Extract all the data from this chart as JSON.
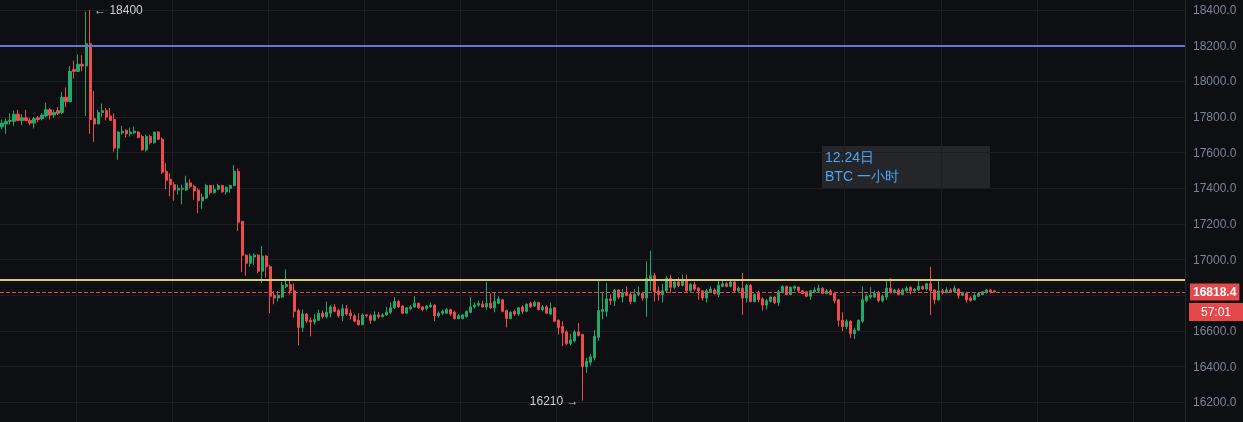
{
  "chart_data": {
    "type": "candlestick",
    "title": "12.24日",
    "subtitle": "BTC 一小时",
    "categories": [
      null,
      null,
      null,
      null,
      null,
      null,
      null,
      null,
      null,
      null,
      null,
      null,
      null,
      null,
      null,
      null,
      null,
      null,
      null,
      null,
      null,
      null,
      null,
      null,
      null,
      null,
      null,
      null,
      null,
      null,
      null,
      null,
      null,
      null,
      null,
      null,
      null,
      null,
      null,
      null,
      null,
      null,
      null,
      null,
      null,
      null,
      null,
      null,
      null,
      null,
      null,
      null,
      null,
      null,
      null,
      null,
      null,
      null,
      null,
      null,
      null,
      null,
      null,
      null,
      null,
      null,
      null,
      null,
      null,
      null,
      null,
      null,
      null,
      null,
      null,
      null,
      null,
      null,
      null,
      null,
      null,
      null,
      null,
      null,
      null,
      null,
      null,
      null,
      null,
      null,
      null,
      null,
      null,
      null,
      null,
      null,
      null,
      null,
      null,
      null,
      null,
      null,
      null,
      null,
      null,
      null,
      null,
      null,
      null,
      null,
      null,
      null,
      null,
      null,
      null,
      null,
      null,
      null,
      null,
      null,
      null,
      null,
      null,
      null,
      null,
      null,
      null,
      null,
      null,
      null,
      null,
      null,
      null,
      null,
      null,
      null,
      null,
      null,
      null,
      null,
      null,
      null,
      null,
      null,
      null,
      null,
      null,
      null,
      null,
      null,
      null,
      null,
      null,
      null,
      null,
      null,
      null,
      null,
      null,
      null,
      null,
      null,
      null,
      null,
      null,
      null,
      null,
      null,
      null,
      null,
      null,
      null,
      null,
      null,
      null,
      null,
      null,
      null,
      null,
      null,
      null,
      null,
      null,
      null,
      null,
      null,
      null,
      null,
      null,
      null,
      null,
      null,
      null,
      null,
      null,
      null,
      null,
      null,
      null,
      null,
      null,
      null,
      null,
      null,
      null,
      null,
      null,
      null,
      null,
      null,
      null,
      null,
      null,
      null,
      null,
      null,
      null,
      null,
      null,
      null,
      null,
      null,
      null,
      null,
      null,
      null,
      null,
      null,
      null,
      null,
      null,
      null,
      null,
      null,
      null,
      null,
      null,
      null,
      null,
      null,
      null,
      null,
      null,
      null,
      null,
      null,
      null,
      null,
      null,
      null,
      null,
      null,
      null,
      null,
      null,
      null,
      null,
      null,
      null,
      null,
      null,
      null,
      null,
      null,
      null,
      null,
      null,
      null,
      null,
      null,
      null,
      null,
      null,
      null,
      null,
      null,
      null,
      null,
      null,
      null,
      null,
      null,
      null,
      null,
      null,
      null,
      null,
      null,
      null,
      null,
      null,
      null,
      null,
      null,
      null,
      null
    ],
    "ohlc": [
      [
        17745,
        17785,
        17730,
        17765
      ],
      [
        17760,
        17790,
        17705,
        17775
      ],
      [
        17775,
        17820,
        17755,
        17780
      ],
      [
        17775,
        17835,
        17750,
        17815
      ],
      [
        17815,
        17840,
        17775,
        17780
      ],
      [
        17780,
        17815,
        17755,
        17795
      ],
      [
        17795,
        17840,
        17775,
        17780
      ],
      [
        17780,
        17795,
        17755,
        17765
      ],
      [
        17765,
        17800,
        17735,
        17790
      ],
      [
        17795,
        17805,
        17770,
        17785
      ],
      [
        17790,
        17820,
        17780,
        17810
      ],
      [
        17805,
        17880,
        17800,
        17840
      ],
      [
        17840,
        17850,
        17785,
        17810
      ],
      [
        17810,
        17840,
        17795,
        17825
      ],
      [
        17835,
        17855,
        17810,
        17820
      ],
      [
        17825,
        17940,
        17815,
        17910
      ],
      [
        17910,
        17965,
        17855,
        17885
      ],
      [
        17885,
        18085,
        17885,
        18055
      ],
      [
        18065,
        18115,
        18015,
        18055
      ],
      [
        18055,
        18150,
        18055,
        18095
      ],
      [
        18095,
        18145,
        18055,
        18085
      ],
      [
        18085,
        18390,
        17805,
        18210
      ],
      [
        18210,
        18400,
        17705,
        17785
      ],
      [
        17790,
        17945,
        17660,
        17760
      ],
      [
        17760,
        17840,
        17760,
        17825
      ],
      [
        17825,
        17875,
        17800,
        17835
      ],
      [
        17835,
        17850,
        17780,
        17800
      ],
      [
        17805,
        17850,
        17780,
        17780
      ],
      [
        17785,
        17820,
        17605,
        17625
      ],
      [
        17625,
        17720,
        17560,
        17715
      ],
      [
        17710,
        17750,
        17700,
        17720
      ],
      [
        17725,
        17730,
        17685,
        17705
      ],
      [
        17705,
        17740,
        17690,
        17715
      ],
      [
        17710,
        17745,
        17705,
        17720
      ],
      [
        17715,
        17720,
        17680,
        17685
      ],
      [
        17690,
        17700,
        17610,
        17615
      ],
      [
        17615,
        17700,
        17605,
        17690
      ],
      [
        17690,
        17700,
        17645,
        17655
      ],
      [
        17655,
        17715,
        17650,
        17715
      ],
      [
        17715,
        17720,
        17670,
        17675
      ],
      [
        17675,
        17685,
        17480,
        17490
      ],
      [
        17495,
        17540,
        17395,
        17445
      ],
      [
        17450,
        17485,
        17355,
        17420
      ],
      [
        17420,
        17435,
        17330,
        17390
      ],
      [
        17390,
        17420,
        17365,
        17400
      ],
      [
        17395,
        17420,
        17310,
        17400
      ],
      [
        17390,
        17470,
        17385,
        17430
      ],
      [
        17430,
        17450,
        17400,
        17410
      ],
      [
        17410,
        17420,
        17335,
        17385
      ],
      [
        17390,
        17400,
        17260,
        17330
      ],
      [
        17330,
        17370,
        17285,
        17350
      ],
      [
        17345,
        17425,
        17340,
        17415
      ],
      [
        17415,
        17420,
        17365,
        17375
      ],
      [
        17375,
        17420,
        17370,
        17395
      ],
      [
        17395,
        17425,
        17390,
        17415
      ],
      [
        17415,
        17420,
        17375,
        17380
      ],
      [
        17380,
        17410,
        17365,
        17405
      ],
      [
        17400,
        17420,
        17375,
        17415
      ],
      [
        17415,
        17530,
        17410,
        17495
      ],
      [
        17495,
        17510,
        17160,
        17210
      ],
      [
        17215,
        17215,
        16930,
        17025
      ],
      [
        17025,
        17030,
        16910,
        16980
      ],
      [
        16980,
        17035,
        16960,
        17020
      ],
      [
        17015,
        17035,
        16970,
        17025
      ],
      [
        17025,
        17030,
        16925,
        16935
      ],
      [
        16935,
        17075,
        16870,
        17020
      ],
      [
        17020,
        17025,
        16900,
        16960
      ],
      [
        16960,
        16970,
        16700,
        16795
      ],
      [
        16800,
        16825,
        16750,
        16785
      ],
      [
        16785,
        16825,
        16765,
        16800
      ],
      [
        16790,
        16875,
        16785,
        16855
      ],
      [
        16850,
        16945,
        16840,
        16860
      ],
      [
        16860,
        16885,
        16805,
        16825
      ],
      [
        16825,
        16865,
        16675,
        16710
      ],
      [
        16715,
        16725,
        16520,
        16620
      ],
      [
        16620,
        16720,
        16595,
        16695
      ],
      [
        16695,
        16700,
        16645,
        16655
      ],
      [
        16660,
        16675,
        16570,
        16650
      ],
      [
        16650,
        16695,
        16635,
        16665
      ],
      [
        16660,
        16720,
        16660,
        16700
      ],
      [
        16700,
        16715,
        16670,
        16680
      ],
      [
        16680,
        16765,
        16670,
        16705
      ],
      [
        16700,
        16745,
        16675,
        16735
      ],
      [
        16735,
        16750,
        16705,
        16710
      ],
      [
        16715,
        16725,
        16675,
        16685
      ],
      [
        16685,
        16750,
        16655,
        16725
      ],
      [
        16725,
        16745,
        16685,
        16695
      ],
      [
        16700,
        16720,
        16665,
        16685
      ],
      [
        16685,
        16695,
        16650,
        16655
      ],
      [
        16660,
        16700,
        16630,
        16635
      ],
      [
        16635,
        16700,
        16635,
        16690
      ],
      [
        16690,
        16695,
        16675,
        16685
      ],
      [
        16685,
        16695,
        16640,
        16660
      ],
      [
        16660,
        16710,
        16655,
        16690
      ],
      [
        16690,
        16705,
        16670,
        16680
      ],
      [
        16680,
        16700,
        16675,
        16690
      ],
      [
        16690,
        16735,
        16685,
        16705
      ],
      [
        16705,
        16760,
        16695,
        16730
      ],
      [
        16730,
        16790,
        16725,
        16765
      ],
      [
        16765,
        16775,
        16730,
        16735
      ],
      [
        16740,
        16745,
        16695,
        16700
      ],
      [
        16700,
        16735,
        16700,
        16730
      ],
      [
        16725,
        16745,
        16715,
        16735
      ],
      [
        16735,
        16795,
        16730,
        16755
      ],
      [
        16755,
        16760,
        16725,
        16730
      ],
      [
        16735,
        16740,
        16710,
        16720
      ],
      [
        16725,
        16745,
        16715,
        16740
      ],
      [
        16735,
        16760,
        16730,
        16745
      ],
      [
        16745,
        16750,
        16655,
        16685
      ],
      [
        16685,
        16710,
        16675,
        16700
      ],
      [
        16700,
        16720,
        16690,
        16710
      ],
      [
        16700,
        16730,
        16695,
        16720
      ],
      [
        16720,
        16725,
        16685,
        16695
      ],
      [
        16705,
        16715,
        16665,
        16670
      ],
      [
        16670,
        16695,
        16665,
        16685
      ],
      [
        16670,
        16695,
        16665,
        16690
      ],
      [
        16680,
        16715,
        16675,
        16710
      ],
      [
        16705,
        16790,
        16700,
        16735
      ],
      [
        16735,
        16760,
        16725,
        16745
      ],
      [
        16745,
        16770,
        16735,
        16755
      ],
      [
        16750,
        16770,
        16730,
        16735
      ],
      [
        16735,
        16875,
        16720,
        16755
      ],
      [
        16755,
        16810,
        16725,
        16730
      ],
      [
        16730,
        16815,
        16705,
        16765
      ],
      [
        16755,
        16795,
        16750,
        16780
      ],
      [
        16775,
        16780,
        16705,
        16710
      ],
      [
        16715,
        16720,
        16620,
        16670
      ],
      [
        16670,
        16710,
        16665,
        16705
      ],
      [
        16710,
        16720,
        16685,
        16695
      ],
      [
        16695,
        16735,
        16685,
        16730
      ],
      [
        16735,
        16745,
        16695,
        16710
      ],
      [
        16710,
        16755,
        16705,
        16750
      ],
      [
        16755,
        16765,
        16730,
        16735
      ],
      [
        16740,
        16770,
        16735,
        16760
      ],
      [
        16760,
        16765,
        16715,
        16720
      ],
      [
        16720,
        16745,
        16710,
        16735
      ],
      [
        16735,
        16745,
        16695,
        16700
      ],
      [
        16695,
        16760,
        16690,
        16725
      ],
      [
        16730,
        16735,
        16650,
        16655
      ],
      [
        16660,
        16665,
        16580,
        16620
      ],
      [
        16625,
        16655,
        16515,
        16590
      ],
      [
        16595,
        16605,
        16520,
        16530
      ],
      [
        16530,
        16585,
        16520,
        16550
      ],
      [
        16545,
        16605,
        16535,
        16595
      ],
      [
        16595,
        16645,
        16570,
        16575
      ],
      [
        16580,
        16585,
        16210,
        16400
      ],
      [
        16400,
        16450,
        16365,
        16430
      ],
      [
        16425,
        16470,
        16405,
        16455
      ],
      [
        16450,
        16605,
        16435,
        16570
      ],
      [
        16565,
        16880,
        16545,
        16715
      ],
      [
        16710,
        16820,
        16665,
        16720
      ],
      [
        16710,
        16870,
        16680,
        16780
      ],
      [
        16780,
        16805,
        16745,
        16770
      ],
      [
        16770,
        16835,
        16740,
        16830
      ],
      [
        16830,
        16835,
        16780,
        16790
      ],
      [
        16790,
        16835,
        16760,
        16815
      ],
      [
        16815,
        16850,
        16795,
        16800
      ],
      [
        16805,
        16820,
        16750,
        16765
      ],
      [
        16765,
        16835,
        16760,
        16805
      ],
      [
        16805,
        16850,
        16795,
        16810
      ],
      [
        16810,
        16820,
        16770,
        16785
      ],
      [
        16785,
        16990,
        16680,
        16895
      ],
      [
        16890,
        17050,
        16825,
        16910
      ],
      [
        16910,
        16925,
        16765,
        16820
      ],
      [
        16825,
        16850,
        16770,
        16805
      ],
      [
        16805,
        16865,
        16760,
        16825
      ],
      [
        16825,
        16910,
        16815,
        16895
      ],
      [
        16895,
        16915,
        16815,
        16845
      ],
      [
        16845,
        16885,
        16835,
        16875
      ],
      [
        16875,
        16900,
        16845,
        16855
      ],
      [
        16855,
        16915,
        16850,
        16885
      ],
      [
        16885,
        16915,
        16820,
        16825
      ],
      [
        16825,
        16870,
        16820,
        16860
      ],
      [
        16860,
        16875,
        16825,
        16835
      ],
      [
        16840,
        16845,
        16775,
        16825
      ],
      [
        16825,
        16830,
        16770,
        16785
      ],
      [
        16785,
        16835,
        16760,
        16825
      ],
      [
        16820,
        16850,
        16815,
        16835
      ],
      [
        16830,
        16840,
        16805,
        16810
      ],
      [
        16805,
        16885,
        16790,
        16855
      ],
      [
        16850,
        16885,
        16845,
        16865
      ],
      [
        16865,
        16875,
        16845,
        16850
      ],
      [
        16850,
        16885,
        16845,
        16875
      ],
      [
        16875,
        16880,
        16815,
        16825
      ],
      [
        16825,
        16850,
        16815,
        16840
      ],
      [
        16840,
        16925,
        16690,
        16785
      ],
      [
        16785,
        16865,
        16760,
        16855
      ],
      [
        16855,
        16865,
        16760,
        16765
      ],
      [
        16765,
        16810,
        16760,
        16805
      ],
      [
        16810,
        16825,
        16760,
        16775
      ],
      [
        16780,
        16790,
        16715,
        16745
      ],
      [
        16745,
        16780,
        16720,
        16770
      ],
      [
        16765,
        16795,
        16760,
        16790
      ],
      [
        16790,
        16795,
        16750,
        16760
      ],
      [
        16760,
        16830,
        16740,
        16820
      ],
      [
        16820,
        16855,
        16810,
        16850
      ],
      [
        16850,
        16855,
        16800,
        16805
      ],
      [
        16805,
        16850,
        16800,
        16845
      ],
      [
        16840,
        16855,
        16825,
        16850
      ],
      [
        16845,
        16850,
        16820,
        16825
      ],
      [
        16825,
        16830,
        16810,
        16810
      ],
      [
        16820,
        16825,
        16790,
        16795
      ],
      [
        16795,
        16830,
        16775,
        16825
      ],
      [
        16820,
        16845,
        16810,
        16830
      ],
      [
        16825,
        16860,
        16815,
        16840
      ],
      [
        16840,
        16845,
        16810,
        16810
      ],
      [
        16810,
        16835,
        16805,
        16825
      ],
      [
        16825,
        16835,
        16800,
        16805
      ],
      [
        16810,
        16820,
        16755,
        16770
      ],
      [
        16775,
        16780,
        16625,
        16660
      ],
      [
        16660,
        16705,
        16600,
        16625
      ],
      [
        16625,
        16665,
        16610,
        16655
      ],
      [
        16655,
        16660,
        16560,
        16585
      ],
      [
        16585,
        16620,
        16555,
        16605
      ],
      [
        16605,
        16665,
        16600,
        16660
      ],
      [
        16655,
        16850,
        16645,
        16775
      ],
      [
        16770,
        16805,
        16760,
        16795
      ],
      [
        16790,
        16845,
        16780,
        16800
      ],
      [
        16790,
        16825,
        16785,
        16810
      ],
      [
        16815,
        16825,
        16760,
        16770
      ],
      [
        16770,
        16805,
        16760,
        16795
      ],
      [
        16790,
        16885,
        16775,
        16840
      ],
      [
        16840,
        16895,
        16810,
        16820
      ],
      [
        16815,
        16835,
        16810,
        16830
      ],
      [
        16830,
        16840,
        16800,
        16805
      ],
      [
        16805,
        16840,
        16800,
        16830
      ],
      [
        16825,
        16850,
        16820,
        16840
      ],
      [
        16845,
        16850,
        16805,
        16825
      ],
      [
        16825,
        16840,
        16820,
        16835
      ],
      [
        16830,
        16885,
        16825,
        16850
      ],
      [
        16850,
        16855,
        16830,
        16835
      ],
      [
        16835,
        16870,
        16825,
        16865
      ],
      [
        16865,
        16960,
        16690,
        16825
      ],
      [
        16830,
        16835,
        16750,
        16775
      ],
      [
        16775,
        16885,
        16770,
        16825
      ],
      [
        16825,
        16835,
        16805,
        16815
      ],
      [
        16815,
        16845,
        16810,
        16830
      ],
      [
        16830,
        16840,
        16815,
        16820
      ],
      [
        16820,
        16855,
        16815,
        16840
      ],
      [
        16835,
        16840,
        16780,
        16800
      ],
      [
        16800,
        16820,
        16795,
        16810
      ],
      [
        16810,
        16820,
        16760,
        16775
      ],
      [
        16785,
        16795,
        16765,
        16770
      ],
      [
        16775,
        16810,
        16770,
        16800
      ],
      [
        16795,
        16815,
        16790,
        16810
      ],
      [
        16805,
        16825,
        16800,
        16820
      ],
      [
        16815,
        16835,
        16810,
        16830
      ],
      [
        16830,
        16835,
        16810,
        16820
      ],
      [
        16825,
        16830,
        16815,
        16820
      ],
      null,
      null,
      null,
      null,
      null,
      null,
      null,
      null,
      null,
      null,
      null,
      null,
      null,
      null,
      null,
      null,
      null,
      null,
      null,
      null,
      null,
      null,
      null,
      null,
      null,
      null,
      null,
      null,
      null,
      null,
      null,
      null,
      null,
      null,
      null,
      null,
      null,
      null,
      null,
      null,
      null,
      null,
      null,
      null,
      null,
      null,
      null
    ],
    "colors": [
      "#22a86b",
      "#22a86b",
      "#22a86b",
      "#22a86b",
      "#ee4b4b",
      "#22a86b",
      "#ee4b4b",
      "#ee4b4b",
      "#22a86b",
      "#ee4b4b",
      "#22a86b",
      "#22a86b",
      "#ee4b4b",
      "#22a86b",
      "#ee4b4b",
      "#22a86b",
      "#ee4b4b",
      "#22a86b",
      "#ee4b4b",
      "#22a86b",
      "#ee4b4b",
      "#22a86b",
      "#ee4b4b",
      "#ee4b4b",
      "#22a86b",
      "#22a86b",
      "#ee4b4b",
      "#ee4b4b",
      "#ee4b4b",
      "#22a86b",
      "#22a86b",
      "#ee4b4b",
      "#22a86b",
      "#22a86b",
      "#ee4b4b",
      "#ee4b4b",
      "#22a86b",
      "#ee4b4b",
      "#22a86b",
      "#ee4b4b",
      "#ee4b4b",
      "#ee4b4b",
      "#ee4b4b",
      "#ee4b4b",
      "#22a86b",
      "#22a86b",
      "#22a86b",
      "#ee4b4b",
      "#ee4b4b",
      "#ee4b4b",
      "#22a86b",
      "#22a86b",
      "#ee4b4b",
      "#22a86b",
      "#22a86b",
      "#ee4b4b",
      "#22a86b",
      "#22a86b",
      "#22a86b",
      "#ee4b4b",
      "#ee4b4b",
      "#ee4b4b",
      "#22a86b",
      "#22a86b",
      "#ee4b4b",
      "#22a86b",
      "#ee4b4b",
      "#ee4b4b",
      "#ee4b4b",
      "#22a86b",
      "#22a86b",
      "#22a86b",
      "#ee4b4b",
      "#ee4b4b",
      "#ee4b4b",
      "#22a86b",
      "#ee4b4b",
      "#ee4b4b",
      "#22a86b",
      "#22a86b",
      "#ee4b4b",
      "#22a86b",
      "#22a86b",
      "#ee4b4b",
      "#ee4b4b",
      "#22a86b",
      "#ee4b4b",
      "#ee4b4b",
      "#ee4b4b",
      "#ee4b4b",
      "#22a86b",
      "#ee4b4b",
      "#ee4b4b",
      "#22a86b",
      "#ee4b4b",
      "#22a86b",
      "#22a86b",
      "#22a86b",
      "#22a86b",
      "#ee4b4b",
      "#ee4b4b",
      "#22a86b",
      "#22a86b",
      "#22a86b",
      "#ee4b4b",
      "#ee4b4b",
      "#22a86b",
      "#22a86b",
      "#ee4b4b",
      "#22a86b",
      "#22a86b",
      "#22a86b",
      "#ee4b4b",
      "#ee4b4b",
      "#22a86b",
      "#22a86b",
      "#22a86b",
      "#22a86b",
      "#22a86b",
      "#22a86b",
      "#ee4b4b",
      "#22a86b",
      "#ee4b4b",
      "#22a86b",
      "#22a86b",
      "#ee4b4b",
      "#ee4b4b",
      "#22a86b",
      "#ee4b4b",
      "#22a86b",
      "#ee4b4b",
      "#22a86b",
      "#ee4b4b",
      "#22a86b",
      "#ee4b4b",
      "#22a86b",
      "#ee4b4b",
      "#22a86b",
      "#ee4b4b",
      "#ee4b4b",
      "#ee4b4b",
      "#ee4b4b",
      "#22a86b",
      "#22a86b",
      "#ee4b4b",
      "#ee4b4b",
      "#22a86b",
      "#22a86b",
      "#22a86b",
      "#22a86b",
      "#22a86b",
      "#22a86b",
      "#ee4b4b",
      "#22a86b",
      "#ee4b4b",
      "#22a86b",
      "#ee4b4b",
      "#ee4b4b",
      "#22a86b",
      "#22a86b",
      "#ee4b4b",
      "#22a86b",
      "#22a86b",
      "#ee4b4b",
      "#ee4b4b",
      "#22a86b",
      "#22a86b",
      "#ee4b4b",
      "#22a86b",
      "#ee4b4b",
      "#22a86b",
      "#ee4b4b",
      "#22a86b",
      "#ee4b4b",
      "#ee4b4b",
      "#ee4b4b",
      "#22a86b",
      "#22a86b",
      "#ee4b4b",
      "#22a86b",
      "#22a86b",
      "#ee4b4b",
      "#22a86b",
      "#ee4b4b",
      "#22a86b",
      "#ee4b4b",
      "#22a86b",
      "#ee4b4b",
      "#22a86b",
      "#ee4b4b",
      "#ee4b4b",
      "#22a86b",
      "#22a86b",
      "#ee4b4b",
      "#22a86b",
      "#22a86b",
      "#ee4b4b",
      "#22a86b",
      "#22a86b",
      "#ee4b4b",
      "#ee4b4b",
      "#ee4b4b",
      "#22a86b",
      "#22a86b",
      "#22a86b",
      "#ee4b4b",
      "#22a86b",
      "#ee4b4b",
      "#ee4b4b",
      "#ee4b4b",
      "#ee4b4b",
      "#22a86b",
      "#ee4b4b",
      "#22a86b",
      "#22a86b",
      "#22a86b",
      "#22a86b",
      "#22a86b",
      "#22a86b",
      "#ee4b4b",
      "#22a86b",
      "#22a86b",
      "#ee4b4b",
      "#22a86b",
      "#ee4b4b",
      "#22a86b",
      "#22a86b",
      "#ee4b4b",
      "#22a86b",
      "#22a86b",
      "#ee4b4b",
      "#22a86b",
      "#ee4b4b",
      "#ee4b4b",
      "#22a86b",
      "#ee4b4b",
      "#22a86b",
      "#ee4b4b",
      "#22a86b",
      "#ee4b4b",
      "#22a86b",
      "#ee4b4b",
      "#ee4b4b",
      "#22a86b",
      "#22a86b",
      "#22a86b",
      "#22a86b",
      "#ee4b4b",
      "#ee4b4b",
      null,
      null,
      null,
      null,
      null,
      null,
      null,
      null,
      null,
      null,
      null,
      null,
      null,
      null,
      null,
      null,
      null,
      null,
      null,
      null,
      null,
      null,
      null,
      null,
      null,
      null,
      null,
      null,
      null,
      null,
      null,
      null,
      null,
      null,
      null,
      null,
      null,
      null,
      null,
      null,
      null,
      null,
      null,
      null,
      null,
      null,
      null
    ],
    "ylim": [
      16090,
      18455
    ],
    "yticks": [
      {
        "value": 16200,
        "label": "16200.0"
      },
      {
        "value": 16400,
        "label": "16400.0"
      },
      {
        "value": 16600,
        "label": "16600.0"
      },
      {
        "value": 16800,
        "label": null
      },
      {
        "value": 17000,
        "label": "17000.0"
      },
      {
        "value": 17200,
        "label": "17200.0"
      },
      {
        "value": 17400,
        "label": "17400.0"
      },
      {
        "value": 17600,
        "label": "17600.0"
      },
      {
        "value": 17800,
        "label": "17800.0"
      },
      {
        "value": 18000,
        "label": "18000.0"
      },
      {
        "value": 18200,
        "label": "18200.0"
      },
      {
        "value": 18400,
        "label": "18400.0"
      }
    ],
    "grid": true,
    "tick_labels": "y",
    "ref_lines": [
      {
        "axis": "y",
        "value": 18200,
        "color": "#6377d4"
      },
      {
        "axis": "y",
        "value": 16885,
        "color": "#d6cd6a"
      },
      {
        "axis": "y",
        "value": 16818.4,
        "label": "16818.4",
        "color": "#e5484a",
        "line_style": "dashed"
      }
    ],
    "annotations": [
      "← 18400",
      "16210 →",
      "57:01"
    ]
  }
}
